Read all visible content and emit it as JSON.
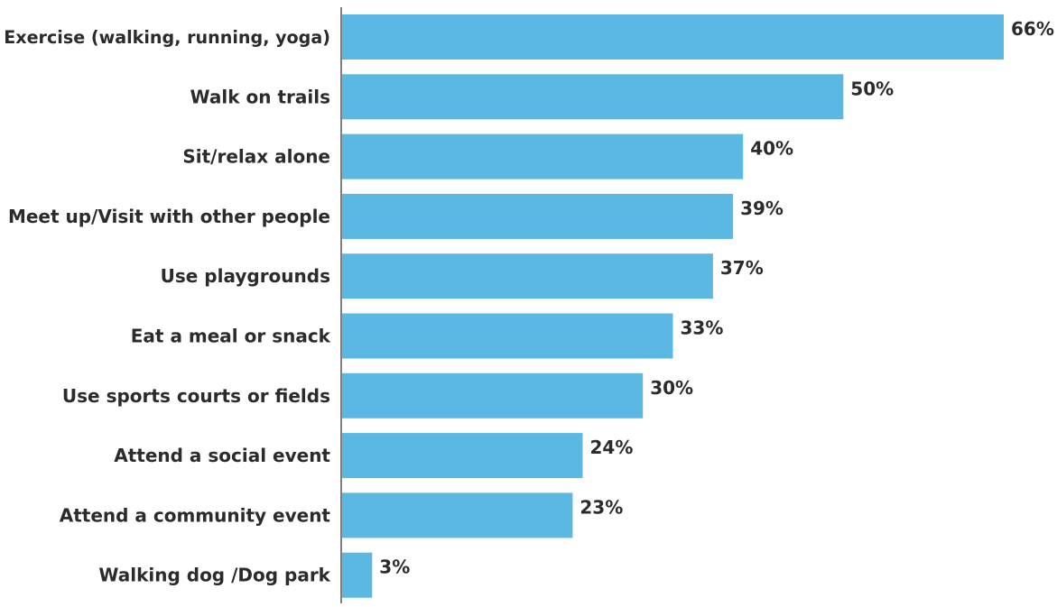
{
  "chart_data": {
    "type": "bar",
    "orientation": "horizontal",
    "title": "",
    "xlabel": "",
    "ylabel": "",
    "categories": [
      "Exercise (walking, running, yoga)",
      "Walk on trails",
      "Sit/relax alone",
      "Meet up/Visit with other people",
      "Use playgrounds",
      "Eat a meal or snack",
      "Use sports courts or fields",
      "Attend a social event",
      "Attend a community event",
      "Walking dog /Dog park"
    ],
    "values": [
      66,
      50,
      40,
      39,
      37,
      33,
      30,
      24,
      23,
      3
    ],
    "value_labels": [
      "66%",
      "50%",
      "40%",
      "39%",
      "37%",
      "33%",
      "30%",
      "24%",
      "23%",
      "3%"
    ],
    "unit": "%",
    "xlim": [
      0,
      66
    ],
    "grid": false,
    "legend": "none",
    "colors": {
      "bar": "#5bb8e2",
      "axis": "#555555",
      "text": "#2b2b2b"
    }
  }
}
